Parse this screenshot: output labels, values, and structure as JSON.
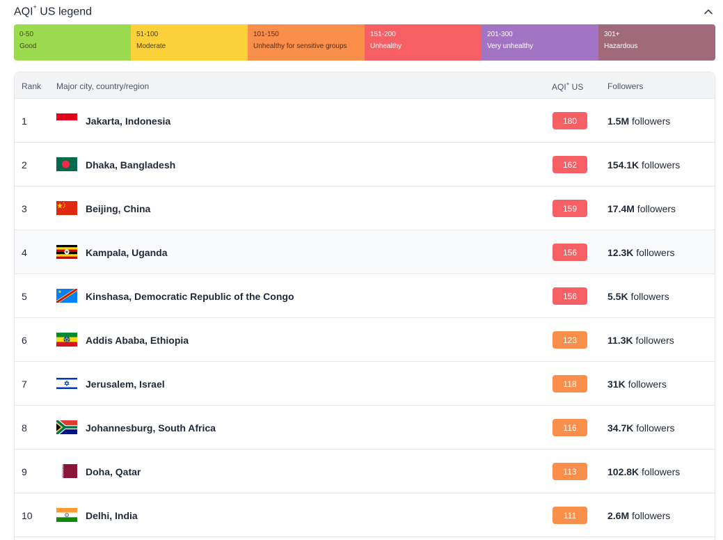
{
  "legend": {
    "title": "AQI",
    "title_sup": "+",
    "title_suffix": " US legend",
    "levels": [
      {
        "range": "0-50",
        "name": "Good",
        "color": "#9cdb4f",
        "text_color": "#3f4a1e"
      },
      {
        "range": "51-100",
        "name": "Moderate",
        "color": "#fcd139",
        "text_color": "#4a3d10"
      },
      {
        "range": "101-150",
        "name": "Unhealthy for sensitive groups",
        "color": "#f98f4b",
        "text_color": "#5a2c12"
      },
      {
        "range": "151-200",
        "name": "Unhealthy",
        "color": "#f66065",
        "text_color": "#ffffff"
      },
      {
        "range": "201-300",
        "name": "Very unhealthy",
        "color": "#a374c3",
        "text_color": "#ffffff"
      },
      {
        "range": "301+",
        "name": "Hazardous",
        "color": "#a06a7b",
        "text_color": "#ffffff"
      }
    ]
  },
  "table": {
    "headers": {
      "rank": "Rank",
      "city": "Major city, country/region",
      "aqi": "AQI",
      "aqi_sup": "+",
      "aqi_suffix": " US",
      "followers": "Followers"
    },
    "followers_suffix": " followers",
    "rows": [
      {
        "rank": "1",
        "city": "Jakarta, Indonesia",
        "flag": "indonesia-flag-icon",
        "aqi": "180",
        "aqi_color": "#f66065",
        "followers": "1.5M"
      },
      {
        "rank": "2",
        "city": "Dhaka, Bangladesh",
        "flag": "bangladesh-flag-icon",
        "aqi": "162",
        "aqi_color": "#f66065",
        "followers": "154.1K"
      },
      {
        "rank": "3",
        "city": "Beijing, China",
        "flag": "china-flag-icon",
        "aqi": "159",
        "aqi_color": "#f66065",
        "followers": "17.4M"
      },
      {
        "rank": "4",
        "city": "Kampala, Uganda",
        "flag": "uganda-flag-icon",
        "aqi": "156",
        "aqi_color": "#f66065",
        "followers": "12.3K"
      },
      {
        "rank": "5",
        "city": "Kinshasa, Democratic Republic of the Congo",
        "flag": "drc-flag-icon",
        "aqi": "156",
        "aqi_color": "#f66065",
        "followers": "5.5K"
      },
      {
        "rank": "6",
        "city": "Addis Ababa, Ethiopia",
        "flag": "ethiopia-flag-icon",
        "aqi": "123",
        "aqi_color": "#f98f4b",
        "followers": "11.3K"
      },
      {
        "rank": "7",
        "city": "Jerusalem, Israel",
        "flag": "israel-flag-icon",
        "aqi": "118",
        "aqi_color": "#f98f4b",
        "followers": "31K"
      },
      {
        "rank": "8",
        "city": "Johannesburg, South Africa",
        "flag": "south-africa-flag-icon",
        "aqi": "116",
        "aqi_color": "#f98f4b",
        "followers": "34.7K"
      },
      {
        "rank": "9",
        "city": "Doha, Qatar",
        "flag": "qatar-flag-icon",
        "aqi": "113",
        "aqi_color": "#f98f4b",
        "followers": "102.8K"
      },
      {
        "rank": "10",
        "city": "Delhi, India",
        "flag": "india-flag-icon",
        "aqi": "111",
        "aqi_color": "#f98f4b",
        "followers": "2.6M"
      }
    ]
  }
}
